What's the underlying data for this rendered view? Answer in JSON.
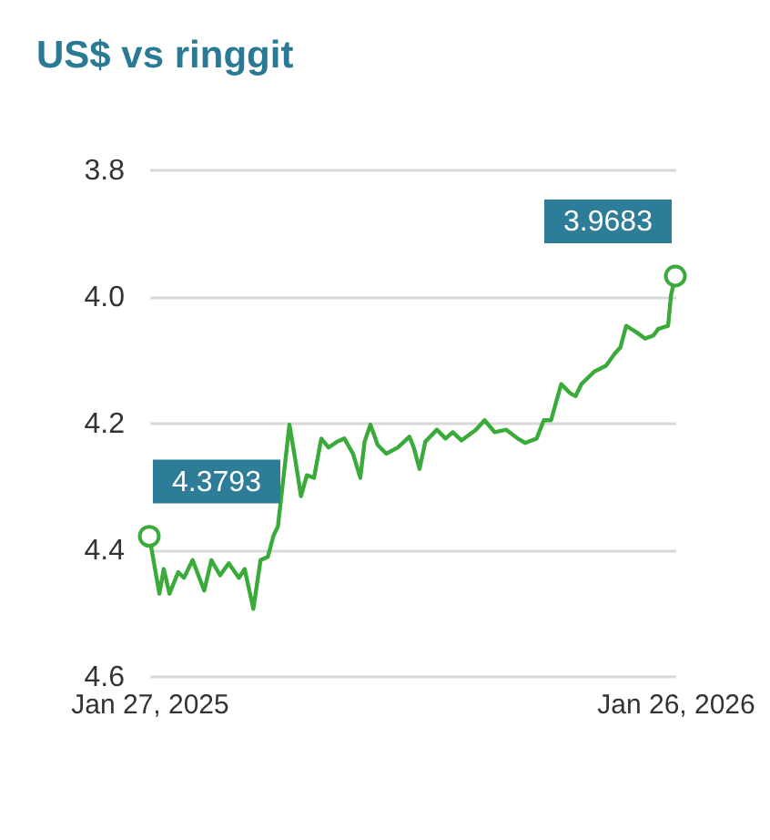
{
  "chart_data": {
    "type": "line",
    "title": "US$ vs ringgit",
    "x": [
      "2025-01-27",
      "2025-02-03",
      "2025-02-06",
      "2025-02-10",
      "2025-02-16",
      "2025-02-20",
      "2025-02-26",
      "2025-03-06",
      "2025-03-11",
      "2025-03-17",
      "2025-03-23",
      "2025-03-30",
      "2025-04-03",
      "2025-04-09",
      "2025-04-14",
      "2025-04-19",
      "2025-04-23",
      "2025-04-26",
      "2025-05-04",
      "2025-05-08",
      "2025-05-12",
      "2025-05-16",
      "2025-05-21",
      "2025-05-26",
      "2025-05-31",
      "2025-06-06",
      "2025-06-11",
      "2025-06-17",
      "2025-06-22",
      "2025-06-25",
      "2025-06-29",
      "2025-07-04",
      "2025-07-10",
      "2025-07-18",
      "2025-07-26",
      "2025-07-29",
      "2025-08-02",
      "2025-08-06",
      "2025-08-14",
      "2025-08-20",
      "2025-08-25",
      "2025-08-31",
      "2025-09-10",
      "2025-09-16",
      "2025-09-23",
      "2025-10-01",
      "2025-10-09",
      "2025-10-14",
      "2025-10-22",
      "2025-10-27",
      "2025-11-01",
      "2025-11-08",
      "2025-11-14",
      "2025-11-18",
      "2025-11-22",
      "2025-12-01",
      "2025-12-09",
      "2025-12-15",
      "2025-12-19",
      "2025-12-23",
      "2025-12-30",
      "2026-01-05",
      "2026-01-11",
      "2026-01-14",
      "2026-01-21",
      "2026-01-23",
      "2026-01-26"
    ],
    "series": [
      {
        "color": "#3aaa3a",
        "values": [
          4.3793,
          4.47,
          4.431,
          4.47,
          4.436,
          4.445,
          4.417,
          4.465,
          4.417,
          4.441,
          4.422,
          4.445,
          4.431,
          4.494,
          4.417,
          4.412,
          4.378,
          4.364,
          4.203,
          4.258,
          4.316,
          4.283,
          4.287,
          4.225,
          4.239,
          4.23,
          4.225,
          4.249,
          4.287,
          4.23,
          4.203,
          4.235,
          4.249,
          4.239,
          4.222,
          4.239,
          4.273,
          4.23,
          4.211,
          4.225,
          4.215,
          4.228,
          4.211,
          4.196,
          4.215,
          4.211,
          4.225,
          4.232,
          4.225,
          4.196,
          4.196,
          4.139,
          4.153,
          4.158,
          4.139,
          4.119,
          4.11,
          4.091,
          4.081,
          4.047,
          4.057,
          4.067,
          4.062,
          4.052,
          4.047,
          3.999,
          3.9683
        ],
        "value_labels": [
          "4.3793",
          null,
          null,
          null,
          null,
          null,
          null,
          null,
          null,
          null,
          null,
          null,
          null,
          null,
          null,
          null,
          null,
          null,
          null,
          null,
          null,
          null,
          null,
          null,
          null,
          null,
          null,
          null,
          null,
          null,
          null,
          null,
          null,
          null,
          null,
          null,
          null,
          null,
          null,
          null,
          null,
          null,
          null,
          null,
          null,
          null,
          null,
          null,
          null,
          null,
          null,
          null,
          null,
          null,
          null,
          null,
          null,
          null,
          null,
          null,
          null,
          null,
          null,
          null,
          null,
          null,
          "3.9683"
        ]
      }
    ],
    "xlim": [
      "2025-01-27",
      "2026-01-26"
    ],
    "xticks": [
      {
        "value": "2025-01-27",
        "label": "Jan 27, 2025"
      },
      {
        "value": "2026-01-26",
        "label": "Jan 26, 2026"
      }
    ],
    "ylim": [
      4.6,
      3.8
    ],
    "yticks": [
      {
        "value": 3.8,
        "label": "3.8"
      },
      {
        "value": 4.0,
        "label": "4.0"
      },
      {
        "value": 4.2,
        "label": "4.2"
      },
      {
        "value": 4.4,
        "label": "4.4"
      },
      {
        "value": 4.6,
        "label": "4.6"
      }
    ],
    "grid": "y"
  }
}
